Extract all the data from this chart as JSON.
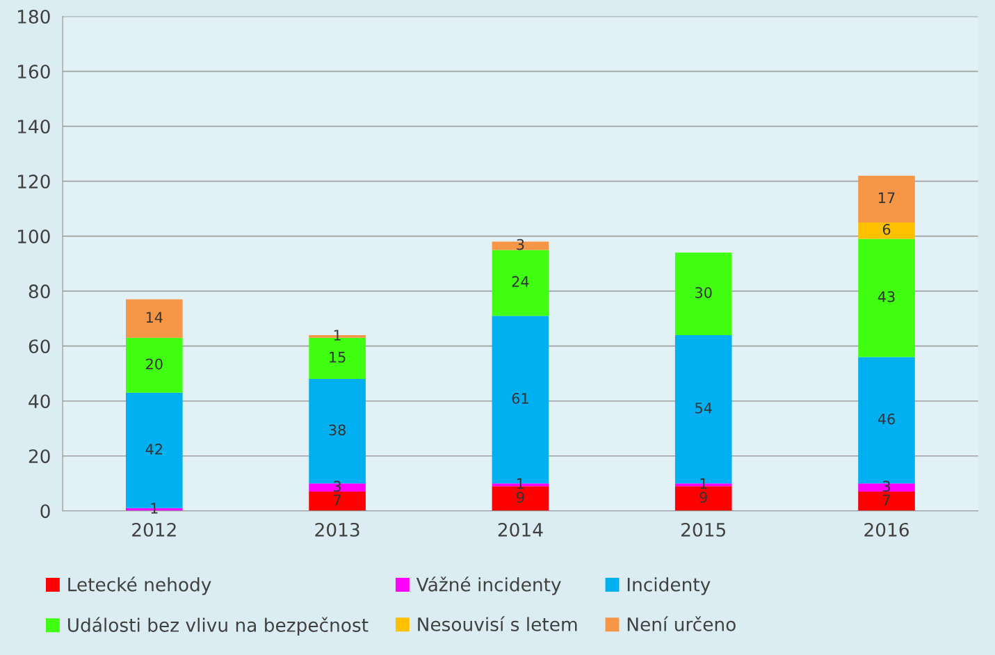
{
  "chart_data": {
    "type": "bar",
    "stacked": true,
    "categories": [
      "2012",
      "2013",
      "2014",
      "2015",
      "2016"
    ],
    "series": [
      {
        "name": "Letecké nehody",
        "color": "#ff0000",
        "values": [
          null,
          7,
          9,
          9,
          7
        ]
      },
      {
        "name": "Vážné incidenty",
        "color": "#ff00ff",
        "values": [
          1,
          3,
          1,
          1,
          3
        ]
      },
      {
        "name": "Incidenty",
        "color": "#00b0f0",
        "values": [
          42,
          38,
          61,
          54,
          46
        ]
      },
      {
        "name": "Události bez vlivu na bezpečnost",
        "color": "#40ff10",
        "values": [
          20,
          15,
          24,
          30,
          43
        ]
      },
      {
        "name": "Nesouvisí s letem",
        "color": "#ffc000",
        "values": [
          null,
          null,
          null,
          null,
          6
        ]
      },
      {
        "name": "Není určeno",
        "color": "#f79646",
        "values": [
          14,
          1,
          3,
          null,
          17
        ]
      }
    ],
    "ylim": [
      0,
      180
    ],
    "yticks": [
      0,
      20,
      40,
      60,
      80,
      100,
      120,
      140,
      160,
      180
    ],
    "grid": "y",
    "legend": "bottom",
    "data_labels": true
  }
}
